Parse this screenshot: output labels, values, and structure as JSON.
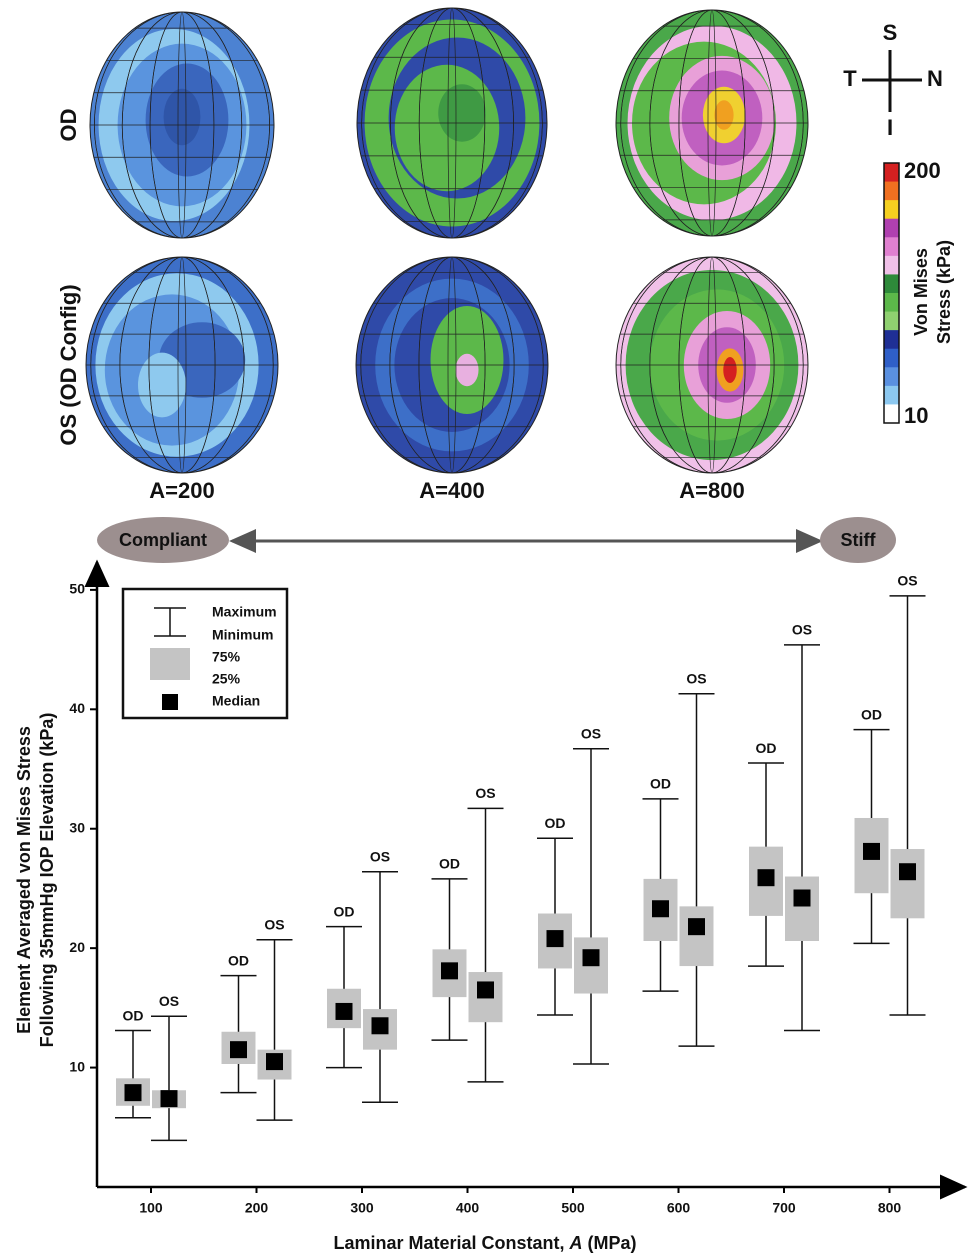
{
  "figure": {
    "row_labels": [
      "OD",
      "OS (OD Config)"
    ],
    "column_labels": [
      "A=200",
      "A=400",
      "A=800"
    ],
    "compass": {
      "top": "S",
      "left": "T",
      "right": "N",
      "bottom": "I"
    },
    "colorbar": {
      "max": 200,
      "min": 10,
      "title": [
        "Von Mises",
        "Stress (kPa)"
      ]
    },
    "stiffness": {
      "left": "Compliant",
      "right": "Stiff"
    }
  },
  "chart_data": {
    "type": "box",
    "ylabel": [
      "Element Averaged von Mises Stress",
      "Following 35mmHg IOP Elevation (kPa)"
    ],
    "xlabel": [
      "Laminar Material Constant, ",
      "A",
      " (MPa)"
    ],
    "categories": [
      "100",
      "200",
      "300",
      "400",
      "500",
      "600",
      "700",
      "800"
    ],
    "ylim": [
      0,
      52
    ],
    "yticks": [
      10,
      20,
      30,
      40,
      50
    ],
    "legend": {
      "max": "Maximum",
      "min": "Minimum",
      "q3": "75%",
      "q1": "25%",
      "median": "Median"
    },
    "box_color": "#c4c4c4",
    "median_color": "#000000",
    "series": [
      {
        "name": "OD",
        "max": [
          13.1,
          17.7,
          21.8,
          25.8,
          29.2,
          32.5,
          35.5,
          38.3
        ],
        "q3": [
          9.1,
          13.0,
          16.6,
          19.9,
          22.9,
          25.8,
          28.5,
          30.9
        ],
        "median": [
          7.9,
          11.5,
          14.7,
          18.1,
          20.8,
          23.3,
          25.9,
          28.1
        ],
        "q1": [
          6.8,
          10.3,
          13.3,
          15.9,
          18.3,
          20.6,
          22.7,
          24.6
        ],
        "min": [
          5.8,
          7.9,
          10.0,
          12.3,
          14.4,
          16.4,
          18.5,
          20.4
        ]
      },
      {
        "name": "OS",
        "max": [
          14.3,
          20.7,
          26.4,
          31.7,
          36.7,
          41.3,
          45.4,
          49.5
        ],
        "q3": [
          8.1,
          11.5,
          14.9,
          18.0,
          20.9,
          23.5,
          26.0,
          28.3
        ],
        "median": [
          7.4,
          10.5,
          13.5,
          16.5,
          19.2,
          21.8,
          24.2,
          26.4
        ],
        "q1": [
          6.6,
          9.0,
          11.5,
          13.8,
          16.2,
          18.5,
          20.6,
          22.5
        ],
        "min": [
          3.9,
          5.6,
          7.1,
          8.8,
          10.3,
          11.8,
          13.1,
          14.4
        ]
      }
    ]
  }
}
